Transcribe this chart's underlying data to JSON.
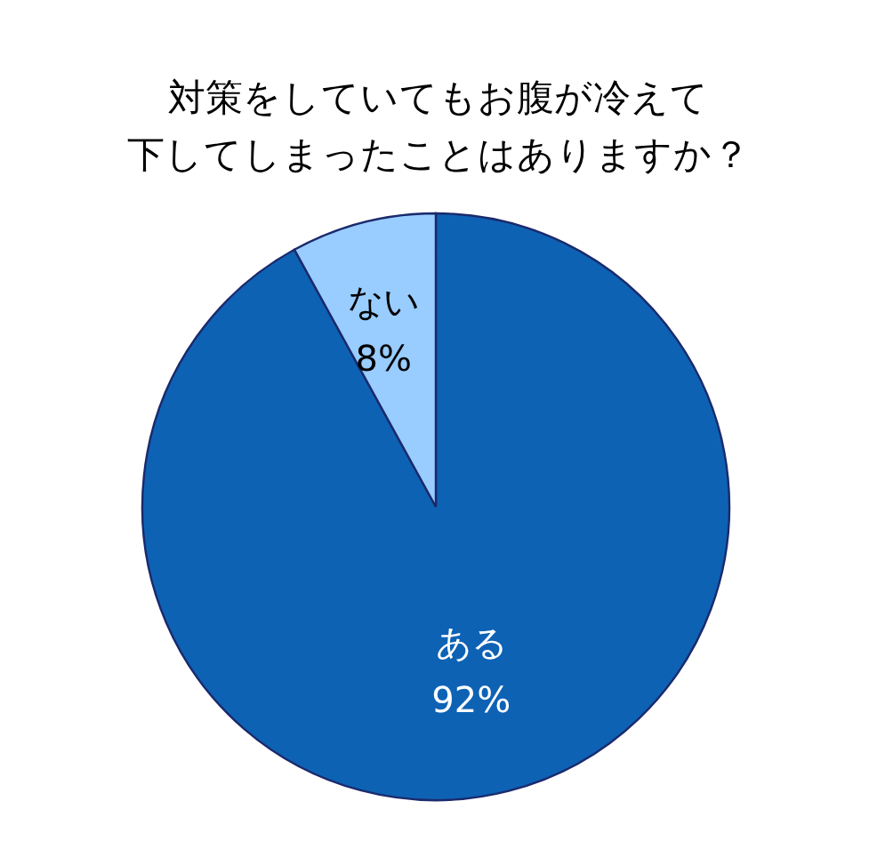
{
  "chart_data": {
    "type": "pie",
    "title": "対策をしていてもお腹が冷えて下してしまったことはありますか？",
    "categories": [
      "ある",
      "ない"
    ],
    "values": [
      92,
      8
    ],
    "colors": [
      "#0e62b4",
      "#99ccff"
    ],
    "value_labels": [
      "92%",
      "8%"
    ],
    "legend": false
  }
}
